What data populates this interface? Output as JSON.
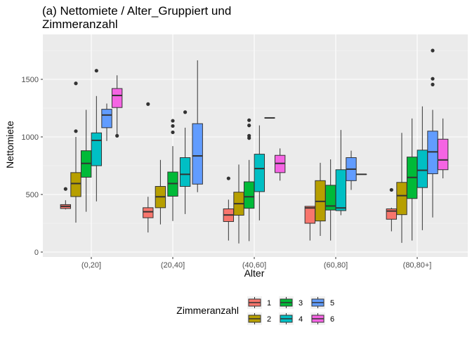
{
  "chart_data": {
    "type": "boxplot",
    "title": "(a) Nettomiete / Alter_Gruppiert und Zimmeranzahl",
    "title_lines": [
      "(a) Nettomiete / Alter_Gruppiert und",
      "Zimmeranzahl"
    ],
    "xlabel": "Alter",
    "ylabel": "Nettomiete",
    "ylim": [
      0,
      1850
    ],
    "yticks": [
      0,
      500,
      1000,
      1500
    ],
    "categories": [
      "(0,20]",
      "(20,40]",
      "(40,60]",
      "(60,80]",
      "(80,80+]"
    ],
    "legend": {
      "title": "Zimmeranzahl",
      "position": "bottom"
    },
    "background": "#ebebeb",
    "grid": true,
    "series": [
      {
        "name": "1",
        "color": "#F8766D",
        "boxes": [
          {
            "low": 370,
            "q1": 378,
            "median": 397,
            "q3": 412,
            "high": 450,
            "outliers": [
              548
            ]
          },
          {
            "low": 170,
            "q1": 298,
            "median": 350,
            "q3": 385,
            "high": 480,
            "outliers": [
              1285
            ]
          },
          {
            "low": 100,
            "q1": 265,
            "median": 322,
            "q3": 375,
            "high": 455,
            "outliers": [
              640
            ]
          },
          {
            "low": 100,
            "q1": 250,
            "median": 383,
            "q3": 397,
            "high": 397,
            "outliers": []
          },
          {
            "low": 180,
            "q1": 285,
            "median": 356,
            "q3": 375,
            "high": 385,
            "outliers": [
              540
            ]
          }
        ]
      },
      {
        "name": "2",
        "color": "#B79F00",
        "boxes": [
          {
            "low": 255,
            "q1": 482,
            "median": 595,
            "q3": 690,
            "high": 1000,
            "outliers": [
              1050,
              1465
            ]
          },
          {
            "low": 240,
            "q1": 385,
            "median": 480,
            "q3": 570,
            "high": 800,
            "outliers": []
          },
          {
            "low": 75,
            "q1": 320,
            "median": 420,
            "q3": 520,
            "high": 760,
            "outliers": []
          },
          {
            "low": 140,
            "q1": 270,
            "median": 440,
            "q3": 620,
            "high": 775,
            "outliers": []
          },
          {
            "low": 80,
            "q1": 325,
            "median": 490,
            "q3": 605,
            "high": 1035,
            "outliers": []
          }
        ]
      },
      {
        "name": "3",
        "color": "#00BA38",
        "boxes": [
          {
            "low": 350,
            "q1": 650,
            "median": 770,
            "q3": 880,
            "high": 1235,
            "outliers": []
          },
          {
            "low": 270,
            "q1": 485,
            "median": 595,
            "q3": 695,
            "high": 920,
            "outliers": [
              1040,
              1095,
              1140
            ]
          },
          {
            "low": 95,
            "q1": 380,
            "median": 480,
            "q3": 610,
            "high": 800,
            "outliers": [
              990,
              1010,
              1100,
              1145
            ]
          },
          {
            "low": 100,
            "q1": 365,
            "median": 400,
            "q3": 580,
            "high": 805,
            "outliers": []
          },
          {
            "low": 100,
            "q1": 465,
            "median": 648,
            "q3": 825,
            "high": 1160,
            "outliers": []
          }
        ]
      },
      {
        "name": "4",
        "color": "#00BFC4",
        "boxes": [
          {
            "low": 440,
            "q1": 750,
            "median": 970,
            "q3": 1035,
            "high": 1355,
            "outliers": [
              1575
            ]
          },
          {
            "low": 330,
            "q1": 570,
            "median": 675,
            "q3": 820,
            "high": 1080,
            "outliers": [
              1215
            ]
          },
          {
            "low": 275,
            "q1": 525,
            "median": 725,
            "q3": 850,
            "high": 1100,
            "outliers": []
          },
          {
            "low": 320,
            "q1": 360,
            "median": 383,
            "q3": 715,
            "high": 1060,
            "outliers": []
          },
          {
            "low": 190,
            "q1": 560,
            "median": 710,
            "q3": 885,
            "high": 1265,
            "outliers": []
          }
        ]
      },
      {
        "name": "5",
        "color": "#619CFF",
        "boxes": [
          {
            "low": 965,
            "q1": 1080,
            "median": 1190,
            "q3": 1240,
            "high": 1290,
            "outliers": []
          },
          {
            "low": 520,
            "q1": 590,
            "median": 835,
            "q3": 1115,
            "high": 1665,
            "outliers": []
          },
          {
            "low": 1165,
            "q1": 1165,
            "median": 1165,
            "q3": 1165,
            "high": 1165,
            "outliers": []
          },
          {
            "low": 540,
            "q1": 620,
            "median": 720,
            "q3": 820,
            "high": 880,
            "outliers": []
          },
          {
            "low": 300,
            "q1": 680,
            "median": 870,
            "q3": 1050,
            "high": 1235,
            "outliers": [
              1455,
              1505,
              1750
            ]
          }
        ]
      },
      {
        "name": "6",
        "color": "#F564E3",
        "boxes": [
          {
            "low": 1010,
            "q1": 1255,
            "median": 1360,
            "q3": 1420,
            "high": 1535,
            "outliers": [
              1010
            ]
          },
          null,
          {
            "low": 620,
            "q1": 690,
            "median": 770,
            "q3": 840,
            "high": 900,
            "outliers": []
          },
          {
            "low": 675,
            "q1": 675,
            "median": 675,
            "q3": 675,
            "high": 675,
            "outliers": []
          },
          {
            "low": 640,
            "q1": 715,
            "median": 800,
            "q3": 980,
            "high": 1160,
            "outliers": []
          }
        ]
      }
    ]
  }
}
